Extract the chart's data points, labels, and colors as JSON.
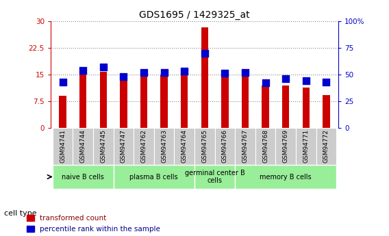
{
  "title": "GDS1695 / 1429325_at",
  "samples": [
    "GSM94741",
    "GSM94744",
    "GSM94745",
    "GSM94747",
    "GSM94762",
    "GSM94763",
    "GSM94764",
    "GSM94765",
    "GSM94766",
    "GSM94767",
    "GSM94768",
    "GSM94769",
    "GSM94771",
    "GSM94772"
  ],
  "transformed_count": [
    9.0,
    15.2,
    15.8,
    13.2,
    15.0,
    15.0,
    15.2,
    28.2,
    14.9,
    14.4,
    11.8,
    11.8,
    11.3,
    9.2
  ],
  "percentile_rank": [
    43,
    54,
    57,
    48,
    52,
    52,
    53,
    70,
    51,
    52,
    42,
    46,
    44,
    43
  ],
  "cell_groups": [
    {
      "label": "naive B cells",
      "start": 0,
      "end": 2,
      "color": "#99ee99"
    },
    {
      "label": "plasma B cells",
      "start": 3,
      "end": 6,
      "color": "#99ee99"
    },
    {
      "label": "germinal center B\ncells",
      "start": 7,
      "end": 8,
      "color": "#99ee99"
    },
    {
      "label": "memory B cells",
      "start": 9,
      "end": 13,
      "color": "#99ee99"
    }
  ],
  "ylim_left": [
    0,
    30
  ],
  "ylim_right": [
    0,
    100
  ],
  "yticks_left": [
    0,
    7.5,
    15,
    22.5,
    30
  ],
  "ytick_labels_left": [
    "0",
    "7.5",
    "15",
    "22.5",
    "30"
  ],
  "yticks_right": [
    0,
    25,
    50,
    75,
    100
  ],
  "ytick_labels_right": [
    "0",
    "25",
    "50",
    "75",
    "100%"
  ],
  "ytick_label_right_first": "0",
  "ytick_label_right_last": "100%",
  "bar_color": "#cc0000",
  "dot_color": "#0000cc",
  "bar_width": 0.35,
  "dot_size": 50,
  "grid_color": "#888888",
  "bg_color": "#ffffff",
  "title_fontsize": 10,
  "tick_fontsize": 7.5,
  "cell_type_label": "cell type",
  "legend_transformed": "transformed count",
  "legend_percentile": "percentile rank within the sample"
}
